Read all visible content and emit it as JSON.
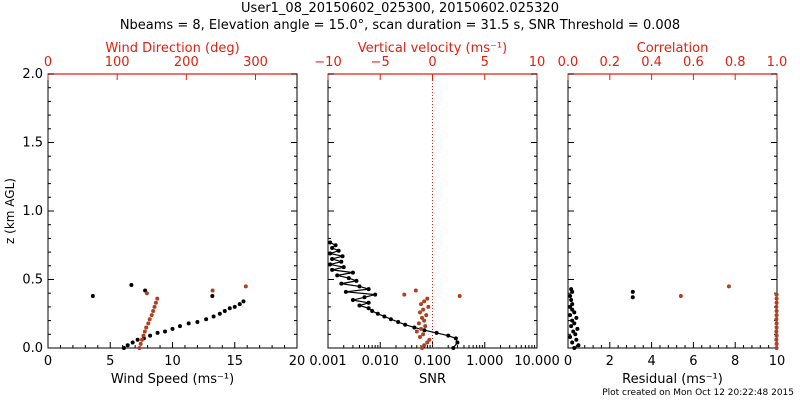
{
  "title": "User1_08_20150602_025300, 20150602.025320",
  "subtitle": "Nbeams = 8, Elevation angle = 15.0°, scan duration = 31.5 s, SNR Threshold = 0.008",
  "footer": "Plot created on Mon Oct 12 20:22:48 2015",
  "colors": {
    "black": "#000000",
    "red": "#b04020",
    "axis_red": "#e02010"
  },
  "chart_data": [
    {
      "type": "scatter",
      "panel": "wind",
      "ylabel": "z (km AGL)",
      "ylim": [
        0,
        2.0
      ],
      "yticks": [
        "0.0",
        "0.5",
        "1.0",
        "1.5",
        "2.0"
      ],
      "bottom_axis": {
        "label": "Wind Speed (ms⁻¹)",
        "range": [
          0,
          20
        ],
        "ticks": [
          "0",
          "5",
          "10",
          "15",
          "20"
        ]
      },
      "top_axis": {
        "label": "Wind Direction (deg)",
        "range": [
          0,
          360
        ],
        "ticks": [
          "0",
          "100",
          "200",
          "300"
        ]
      },
      "series": [
        {
          "axis": "bottom",
          "color": "#000000",
          "points": [
            [
              6.1,
              0.0
            ],
            [
              6.4,
              0.02
            ],
            [
              6.8,
              0.04
            ],
            [
              7.2,
              0.06
            ],
            [
              7.7,
              0.07
            ],
            [
              8.2,
              0.09
            ],
            [
              8.8,
              0.11
            ],
            [
              9.4,
              0.12
            ],
            [
              10.0,
              0.14
            ],
            [
              10.6,
              0.16
            ],
            [
              11.3,
              0.18
            ],
            [
              12.0,
              0.19
            ],
            [
              12.7,
              0.21
            ],
            [
              13.3,
              0.23
            ],
            [
              13.8,
              0.25
            ],
            [
              14.2,
              0.27
            ],
            [
              14.6,
              0.29
            ],
            [
              15.0,
              0.3
            ],
            [
              15.4,
              0.32
            ],
            [
              15.7,
              0.34
            ],
            [
              13.2,
              0.38
            ],
            [
              6.7,
              0.46
            ],
            [
              3.6,
              0.38
            ],
            [
              7.8,
              0.42
            ]
          ]
        },
        {
          "axis": "top",
          "color": "#b04020",
          "points": [
            [
              132,
              0.0
            ],
            [
              134,
              0.03
            ],
            [
              136,
              0.06
            ],
            [
              138,
              0.09
            ],
            [
              140,
              0.12
            ],
            [
              142,
              0.15
            ],
            [
              145,
              0.18
            ],
            [
              147,
              0.21
            ],
            [
              150,
              0.24
            ],
            [
              152,
              0.27
            ],
            [
              154,
              0.3
            ],
            [
              156,
              0.33
            ],
            [
              158,
              0.36
            ],
            [
              143,
              0.4
            ],
            [
              238,
              0.42
            ],
            [
              286,
              0.45
            ]
          ]
        }
      ]
    },
    {
      "type": "scatter",
      "panel": "snr_vertical",
      "ylim": [
        0,
        2.0
      ],
      "bottom_axis": {
        "label": "SNR",
        "scale": "log",
        "range": [
          0.001,
          10.0
        ],
        "ticks": [
          "0.001",
          "0.010",
          "0.100",
          "1.000",
          "10.000"
        ]
      },
      "top_axis": {
        "label": "Vertical velocity (ms⁻¹)",
        "range": [
          -10,
          10
        ],
        "ticks": [
          "−10",
          "−5",
          "0",
          "5",
          "10"
        ]
      },
      "reference_line": {
        "axis": "top",
        "value": 0,
        "style": "dotted"
      },
      "series": [
        {
          "axis": "bottom",
          "color": "#000000",
          "connected": true,
          "points": [
            [
              0.25,
              0.0
            ],
            [
              0.3,
              0.04
            ],
            [
              0.28,
              0.07
            ],
            [
              0.2,
              0.09
            ],
            [
              0.12,
              0.11
            ],
            [
              0.07,
              0.13
            ],
            [
              0.045,
              0.15
            ],
            [
              0.03,
              0.17
            ],
            [
              0.022,
              0.19
            ],
            [
              0.016,
              0.21
            ],
            [
              0.012,
              0.23
            ],
            [
              0.009,
              0.25
            ],
            [
              0.007,
              0.27
            ],
            [
              0.006,
              0.29
            ],
            [
              0.004,
              0.31
            ],
            [
              0.006,
              0.33
            ],
            [
              0.003,
              0.35
            ],
            [
              0.005,
              0.37
            ],
            [
              0.008,
              0.39
            ],
            [
              0.0022,
              0.41
            ],
            [
              0.006,
              0.43
            ],
            [
              0.004,
              0.45
            ],
            [
              0.0018,
              0.47
            ],
            [
              0.0035,
              0.49
            ],
            [
              0.0025,
              0.51
            ],
            [
              0.0015,
              0.53
            ],
            [
              0.003,
              0.55
            ],
            [
              0.0012,
              0.57
            ],
            [
              0.002,
              0.59
            ],
            [
              0.0011,
              0.61
            ],
            [
              0.0018,
              0.63
            ],
            [
              0.0012,
              0.65
            ],
            [
              0.0019,
              0.67
            ],
            [
              0.0011,
              0.69
            ],
            [
              0.0016,
              0.71
            ],
            [
              0.0012,
              0.73
            ],
            [
              0.0014,
              0.75
            ],
            [
              0.0011,
              0.77
            ]
          ]
        },
        {
          "axis": "top",
          "color": "#b04020",
          "points": [
            [
              -1.0,
              0.0
            ],
            [
              -0.8,
              0.02
            ],
            [
              -0.5,
              0.04
            ],
            [
              -0.3,
              0.06
            ],
            [
              -1.2,
              0.08
            ],
            [
              -0.9,
              0.1
            ],
            [
              -1.5,
              0.12
            ],
            [
              -1.1,
              0.14
            ],
            [
              -0.7,
              0.16
            ],
            [
              -1.3,
              0.18
            ],
            [
              -0.8,
              0.2
            ],
            [
              -1.0,
              0.22
            ],
            [
              -0.6,
              0.24
            ],
            [
              -1.2,
              0.26
            ],
            [
              -0.9,
              0.28
            ],
            [
              -0.4,
              0.3
            ],
            [
              -1.1,
              0.32
            ],
            [
              -0.8,
              0.34
            ],
            [
              -0.5,
              0.36
            ],
            [
              -2.7,
              0.39
            ],
            [
              2.6,
              0.38
            ],
            [
              -1.6,
              0.42
            ]
          ]
        }
      ]
    },
    {
      "type": "scatter",
      "panel": "residual_correlation",
      "ylim": [
        0,
        2.0
      ],
      "bottom_axis": {
        "label": "Residual (ms⁻¹)",
        "range": [
          0,
          10
        ],
        "ticks": [
          "0",
          "2",
          "4",
          "6",
          "8",
          "10"
        ]
      },
      "top_axis": {
        "label": "Correlation",
        "range": [
          0.0,
          1.0
        ],
        "ticks": [
          "0.0",
          "0.2",
          "0.4",
          "0.6",
          "0.8",
          "1.0"
        ]
      },
      "series": [
        {
          "axis": "bottom",
          "color": "#000000",
          "points": [
            [
              0.3,
              0.0
            ],
            [
              0.5,
              0.02
            ],
            [
              0.2,
              0.04
            ],
            [
              0.4,
              0.06
            ],
            [
              0.1,
              0.08
            ],
            [
              0.35,
              0.1
            ],
            [
              0.25,
              0.12
            ],
            [
              0.45,
              0.14
            ],
            [
              0.15,
              0.16
            ],
            [
              0.3,
              0.18
            ],
            [
              0.2,
              0.2
            ],
            [
              0.4,
              0.22
            ],
            [
              0.1,
              0.24
            ],
            [
              0.3,
              0.26
            ],
            [
              0.2,
              0.28
            ],
            [
              0.1,
              0.3
            ],
            [
              0.2,
              0.32
            ],
            [
              0.15,
              0.35
            ],
            [
              0.1,
              0.38
            ],
            [
              0.2,
              0.41
            ],
            [
              0.15,
              0.43
            ],
            [
              3.1,
              0.37
            ],
            [
              3.1,
              0.41
            ]
          ]
        },
        {
          "axis": "top",
          "color": "#b04020",
          "points": [
            [
              0.998,
              0.0
            ],
            [
              0.998,
              0.03
            ],
            [
              0.997,
              0.06
            ],
            [
              0.998,
              0.09
            ],
            [
              0.997,
              0.12
            ],
            [
              0.998,
              0.15
            ],
            [
              0.998,
              0.18
            ],
            [
              0.997,
              0.21
            ],
            [
              0.998,
              0.24
            ],
            [
              0.998,
              0.27
            ],
            [
              0.997,
              0.3
            ],
            [
              0.998,
              0.33
            ],
            [
              0.998,
              0.36
            ],
            [
              0.998,
              0.39
            ],
            [
              0.54,
              0.38
            ],
            [
              0.77,
              0.45
            ]
          ]
        }
      ]
    }
  ]
}
